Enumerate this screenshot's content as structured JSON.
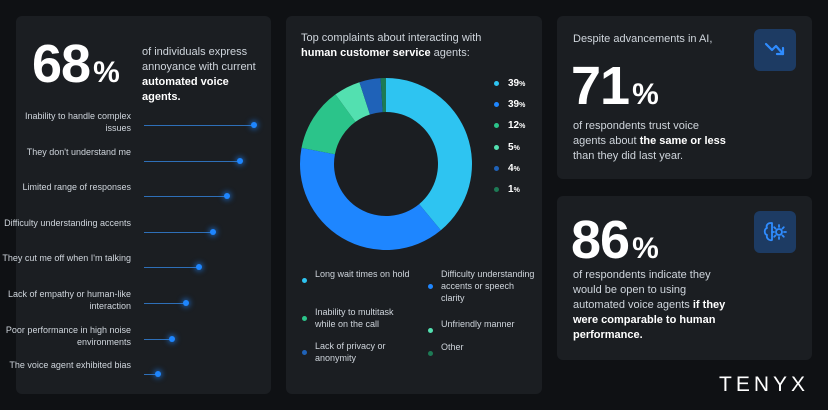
{
  "left": {
    "stat": "68",
    "pct": "%",
    "desc_plain": "of individuals express annoyance with current",
    "desc_bold": "automated voice agents.",
    "rows": [
      {
        "label": "Inability to handle complex issues",
        "value": 1.0
      },
      {
        "label": "They don't understand me",
        "value": 0.87
      },
      {
        "label": "Limited range of responses",
        "value": 0.75
      },
      {
        "label": "Difficulty understanding accents",
        "value": 0.63
      },
      {
        "label": "They cut me off when I'm talking",
        "value": 0.5
      },
      {
        "label": "Lack of empathy or human-like interaction",
        "value": 0.38
      },
      {
        "label": "Poor performance in high noise environments",
        "value": 0.25
      },
      {
        "label": "The voice agent exhibited bias",
        "value": 0.13
      }
    ]
  },
  "chart_data": {
    "type": "pie",
    "title_plain": "Top complaints about interacting with",
    "title_bold": "human customer service",
    "title_end": " agents:",
    "series": [
      {
        "name": "Long wait times on hold",
        "value": 39,
        "label": "39",
        "color": "#2ec4f1"
      },
      {
        "name": "Difficulty understanding accents or speech clarity",
        "value": 39,
        "label": "39",
        "color": "#1e86ff"
      },
      {
        "name": "Inability to multitask while on the call",
        "value": 12,
        "label": "12",
        "color": "#2bc48a"
      },
      {
        "name": "Unfriendly manner",
        "value": 5,
        "label": "5",
        "color": "#53e0b0"
      },
      {
        "name": "Lack of privacy or anonymity",
        "value": 4,
        "label": "4",
        "color": "#1f62b8"
      },
      {
        "name": "Other",
        "value": 1,
        "label": "1",
        "color": "#1d7a55"
      }
    ],
    "unit": "%"
  },
  "right_top": {
    "intro": "Despite advancements in AI,",
    "stat": "71",
    "pct": "%",
    "desc_plain": "of respondents trust voice agents about",
    "desc_bold": "the same or less",
    "desc_end": " than they did last year.",
    "icon": "trend-down-icon"
  },
  "right_bottom": {
    "stat": "86",
    "pct": "%",
    "desc_plain": "of respondents indicate they would be open to using automated voice agents",
    "desc_bold": "if they were comparable to human performance.",
    "icon": "brain-gear-icon"
  },
  "brand": "TENYX"
}
